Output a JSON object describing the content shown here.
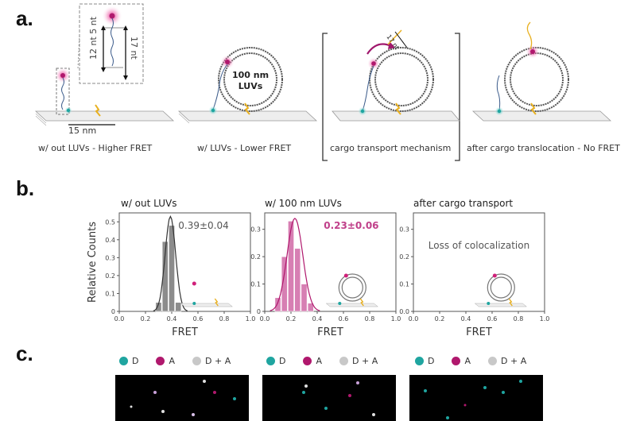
{
  "panel_labels": {
    "a": "a.",
    "b": "b.",
    "c": "c."
  },
  "panel_a": {
    "captions": [
      "w/ out LUVs - Higher FRET",
      "w/ LUVs - Lower FRET",
      "cargo transport mechanism",
      "after cargo translocation - No FRET"
    ],
    "inset_labels": {
      "left": "12 nt 5 nt",
      "right": "17 nt"
    },
    "scale_bar": "15 nm",
    "luv_label": "100 nm LUVs",
    "arrow_label": "17 nt"
  },
  "panel_b": {
    "ylabel": "Relative Counts",
    "xlabel": "FRET",
    "x_ticks": [
      "0.0",
      "0.2",
      "0.4",
      "0.6",
      "0.8",
      "1.0"
    ],
    "charts": [
      {
        "title": "w/ out LUVs",
        "annotation": "0.39±0.04",
        "color": "#8c8c8c",
        "y_ticks": [
          "0",
          "0.1",
          "0.2",
          "0.3",
          "0.4",
          "0.5"
        ]
      },
      {
        "title": "w/ 100 nm LUVs",
        "annotation": "0.23±0.06",
        "color": "#d77fb3",
        "y_ticks": [
          "0",
          "0.1",
          "0.2",
          "0.3"
        ]
      },
      {
        "title": "after cargo transport",
        "annotation": "Loss of colocalization",
        "color": "#888888",
        "y_ticks": [
          "0.0",
          "0.1",
          "0.2",
          "0.3"
        ]
      }
    ]
  },
  "chart_data": [
    {
      "type": "bar",
      "title": "w/ out LUVs",
      "xlabel": "FRET",
      "ylabel": "Relative Counts",
      "xlim": [
        0,
        1
      ],
      "ylim": [
        0,
        0.55
      ],
      "bin_width": 0.05,
      "x": [
        0.3,
        0.35,
        0.4,
        0.45
      ],
      "values": [
        0.05,
        0.39,
        0.48,
        0.05
      ],
      "fit": {
        "type": "gaussian",
        "mean": 0.39,
        "sd": 0.04,
        "peak": 0.53
      },
      "annotation": "0.39±0.04"
    },
    {
      "type": "bar",
      "title": "w/ 100 nm LUVs",
      "xlabel": "FRET",
      "ylabel": "",
      "xlim": [
        0,
        1
      ],
      "ylim": [
        0,
        0.36
      ],
      "bin_width": 0.05,
      "x": [
        0.1,
        0.15,
        0.2,
        0.25,
        0.3,
        0.35
      ],
      "values": [
        0.05,
        0.2,
        0.33,
        0.23,
        0.1,
        0.03
      ],
      "fit": {
        "type": "gaussian",
        "mean": 0.23,
        "sd": 0.06,
        "peak": 0.34
      },
      "annotation": "0.23±0.06"
    },
    {
      "type": "bar",
      "title": "after cargo transport",
      "xlabel": "FRET",
      "ylabel": "",
      "xlim": [
        0,
        1
      ],
      "ylim": [
        0,
        0.36
      ],
      "x": [],
      "values": [],
      "annotation": "Loss of colocalization"
    }
  ],
  "panel_c": {
    "legend": [
      {
        "label": "D",
        "color": "#1fa5a0"
      },
      {
        "label": "A",
        "color": "#b0186d"
      },
      {
        "label": "D + A",
        "color": "#c8c8c8"
      }
    ]
  }
}
